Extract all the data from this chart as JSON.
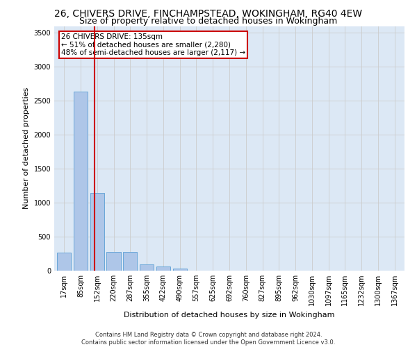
{
  "title": "26, CHIVERS DRIVE, FINCHAMPSTEAD, WOKINGHAM, RG40 4EW",
  "subtitle": "Size of property relative to detached houses in Wokingham",
  "xlabel": "Distribution of detached houses by size in Wokingham",
  "ylabel": "Number of detached properties",
  "footer_line1": "Contains HM Land Registry data © Crown copyright and database right 2024.",
  "footer_line2": "Contains public sector information licensed under the Open Government Licence v3.0.",
  "bar_labels": [
    "17sqm",
    "85sqm",
    "152sqm",
    "220sqm",
    "287sqm",
    "355sqm",
    "422sqm",
    "490sqm",
    "557sqm",
    "625sqm",
    "692sqm",
    "760sqm",
    "827sqm",
    "895sqm",
    "962sqm",
    "1030sqm",
    "1097sqm",
    "1165sqm",
    "1232sqm",
    "1300sqm",
    "1367sqm"
  ],
  "bar_values": [
    270,
    2640,
    1140,
    280,
    280,
    95,
    60,
    35,
    0,
    0,
    0,
    0,
    0,
    0,
    0,
    0,
    0,
    0,
    0,
    0,
    0
  ],
  "bar_color": "#aec6e8",
  "bar_edge_color": "#5a9fd4",
  "red_line_x": 1.85,
  "annotation_title": "26 CHIVERS DRIVE: 135sqm",
  "annotation_line1": "← 51% of detached houses are smaller (2,280)",
  "annotation_line2": "48% of semi-detached houses are larger (2,117) →",
  "annotation_box_color": "#ffffff",
  "annotation_box_edge_color": "#cc0000",
  "red_line_color": "#cc0000",
  "ylim": [
    0,
    3600
  ],
  "yticks": [
    0,
    500,
    1000,
    1500,
    2000,
    2500,
    3000,
    3500
  ],
  "grid_color": "#cccccc",
  "background_color": "#dce8f5",
  "title_fontsize": 10,
  "subtitle_fontsize": 9,
  "axis_label_fontsize": 8,
  "tick_fontsize": 7,
  "footer_fontsize": 6
}
